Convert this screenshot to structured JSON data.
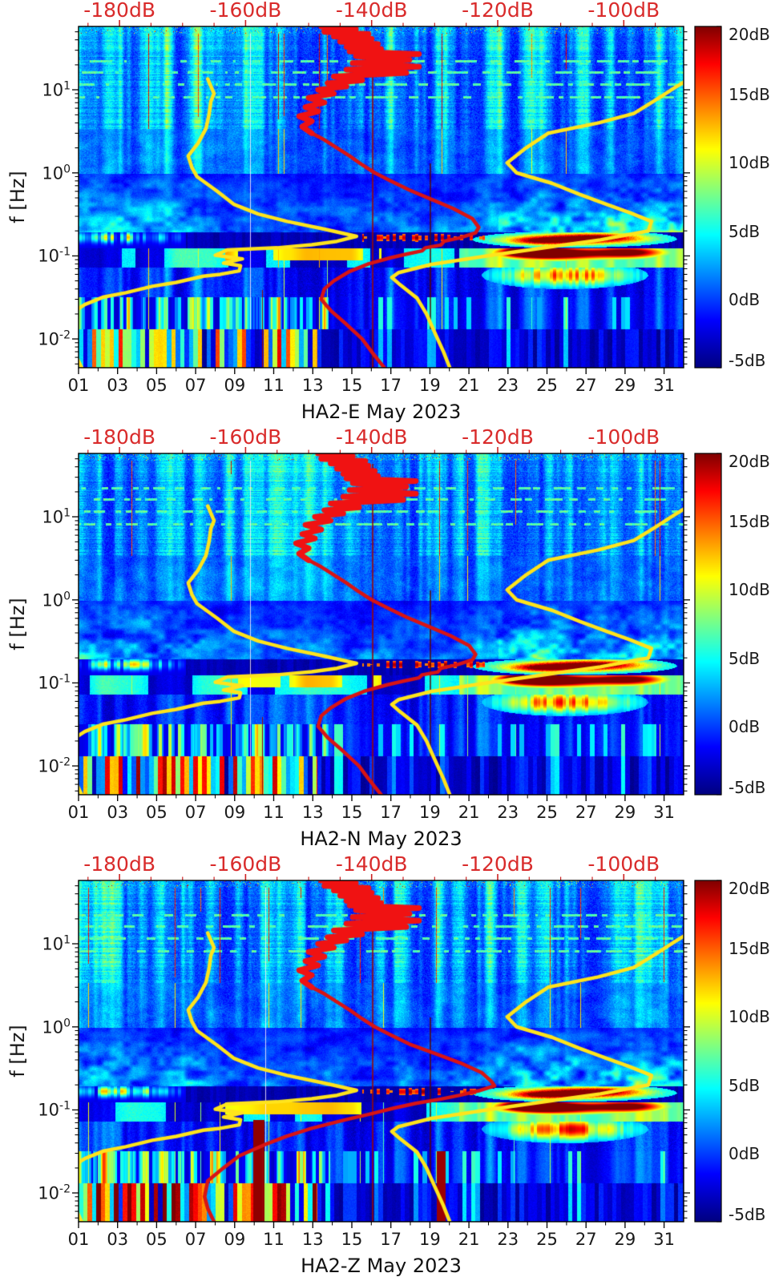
{
  "page": {
    "background": "#ffffff"
  },
  "chart_data": {
    "type": "heatmap",
    "figure_kind": "seismic PSD spectrograms with median PSD and noise-model curves",
    "month": "May 2023",
    "station": "HA2",
    "panels": [
      {
        "id": "HA2-E",
        "title": "HA2-E May 2023",
        "median_psd_curve_db_vs_hz": [
          [
            58,
            -148
          ],
          [
            54,
            -142.5
          ],
          [
            50,
            -147.5
          ],
          [
            47,
            -140.5
          ],
          [
            44,
            -146
          ],
          [
            41,
            -140
          ],
          [
            38,
            -145
          ],
          [
            35.5,
            -139
          ],
          [
            33,
            -144
          ],
          [
            31,
            -138.5
          ],
          [
            29,
            -143.5
          ],
          [
            27,
            -132.5
          ],
          [
            25.5,
            -142.5
          ],
          [
            23,
            -134
          ],
          [
            21,
            -143
          ],
          [
            19,
            -132.5
          ],
          [
            17.5,
            -144
          ],
          [
            16,
            -134.5
          ],
          [
            14.5,
            -146
          ],
          [
            13,
            -141.5
          ],
          [
            12,
            -147
          ],
          [
            11,
            -144
          ],
          [
            10,
            -148.5
          ],
          [
            9,
            -146
          ],
          [
            8,
            -150
          ],
          [
            7,
            -147.5
          ],
          [
            6.2,
            -150.5
          ],
          [
            5.5,
            -148.5
          ],
          [
            4.8,
            -151.5
          ],
          [
            4.2,
            -149.5
          ],
          [
            3.6,
            -151
          ],
          [
            3,
            -149.5
          ],
          [
            2.5,
            -147.5
          ],
          [
            2,
            -145.5
          ],
          [
            1.6,
            -143.5
          ],
          [
            1.25,
            -141.5
          ],
          [
            1,
            -139.5
          ],
          [
            0.8,
            -137
          ],
          [
            0.62,
            -134
          ],
          [
            0.48,
            -130.5
          ],
          [
            0.37,
            -127
          ],
          [
            0.28,
            -124
          ],
          [
            0.22,
            -123
          ],
          [
            0.19,
            -123.5
          ],
          [
            0.165,
            -126
          ],
          [
            0.15,
            -128.5
          ],
          [
            0.135,
            -129
          ],
          [
            0.125,
            -131.5
          ],
          [
            0.115,
            -132
          ],
          [
            0.105,
            -134.5
          ],
          [
            0.095,
            -137
          ],
          [
            0.08,
            -140.5
          ],
          [
            0.065,
            -143.5
          ],
          [
            0.05,
            -146
          ],
          [
            0.04,
            -147.5
          ],
          [
            0.03,
            -148
          ],
          [
            0.022,
            -146.5
          ],
          [
            0.015,
            -144
          ],
          [
            0.01,
            -141.5
          ],
          [
            0.007,
            -140
          ],
          [
            0.0045,
            -138
          ]
        ]
      },
      {
        "id": "HA2-N",
        "title": "HA2-N May 2023",
        "median_psd_curve_db_vs_hz": [
          [
            58,
            -148.5
          ],
          [
            54,
            -143
          ],
          [
            50,
            -148
          ],
          [
            47,
            -141
          ],
          [
            44,
            -146.5
          ],
          [
            41,
            -140.5
          ],
          [
            38,
            -145.5
          ],
          [
            35.5,
            -139.5
          ],
          [
            33,
            -144.5
          ],
          [
            31,
            -139
          ],
          [
            29,
            -144
          ],
          [
            27,
            -133
          ],
          [
            25.5,
            -143
          ],
          [
            23,
            -134.5
          ],
          [
            21,
            -143.5
          ],
          [
            19,
            -133
          ],
          [
            17.5,
            -144.5
          ],
          [
            16,
            -135
          ],
          [
            14.5,
            -146.5
          ],
          [
            13,
            -142
          ],
          [
            12,
            -147.5
          ],
          [
            11,
            -144.5
          ],
          [
            10,
            -149
          ],
          [
            9,
            -146.5
          ],
          [
            8,
            -150.5
          ],
          [
            7,
            -148
          ],
          [
            6.2,
            -151
          ],
          [
            5.5,
            -149
          ],
          [
            4.8,
            -152
          ],
          [
            4.2,
            -150
          ],
          [
            3.6,
            -151.5
          ],
          [
            3,
            -150
          ],
          [
            2.5,
            -148
          ],
          [
            2,
            -146
          ],
          [
            1.6,
            -144
          ],
          [
            1.25,
            -142
          ],
          [
            1,
            -140
          ],
          [
            0.8,
            -137.5
          ],
          [
            0.62,
            -134.5
          ],
          [
            0.48,
            -131
          ],
          [
            0.37,
            -127.5
          ],
          [
            0.28,
            -124.5
          ],
          [
            0.22,
            -123.5
          ],
          [
            0.19,
            -124
          ],
          [
            0.165,
            -126.5
          ],
          [
            0.15,
            -129
          ],
          [
            0.135,
            -129.5
          ],
          [
            0.125,
            -132
          ],
          [
            0.115,
            -132.5
          ],
          [
            0.105,
            -135
          ],
          [
            0.095,
            -137.5
          ],
          [
            0.08,
            -141
          ],
          [
            0.065,
            -144
          ],
          [
            0.05,
            -146.5
          ],
          [
            0.04,
            -148
          ],
          [
            0.03,
            -148.5
          ],
          [
            0.022,
            -147
          ],
          [
            0.015,
            -144.5
          ],
          [
            0.01,
            -142
          ],
          [
            0.007,
            -140.5
          ],
          [
            0.0045,
            -138.5
          ]
        ]
      },
      {
        "id": "HA2-Z",
        "title": "HA2-Z May 2023",
        "median_psd_curve_db_vs_hz": [
          [
            58,
            -148
          ],
          [
            54,
            -142.5
          ],
          [
            50,
            -147.5
          ],
          [
            47,
            -140.5
          ],
          [
            44,
            -146
          ],
          [
            41,
            -140
          ],
          [
            38,
            -145
          ],
          [
            35.5,
            -139
          ],
          [
            33,
            -144
          ],
          [
            31,
            -138.5
          ],
          [
            29,
            -143.5
          ],
          [
            27,
            -132.5
          ],
          [
            25.5,
            -142.5
          ],
          [
            23,
            -134
          ],
          [
            21,
            -143
          ],
          [
            19,
            -132.5
          ],
          [
            17.5,
            -144
          ],
          [
            16,
            -134.5
          ],
          [
            14.5,
            -146
          ],
          [
            13,
            -141.5
          ],
          [
            12,
            -147
          ],
          [
            11,
            -144
          ],
          [
            10,
            -148.5
          ],
          [
            9,
            -146
          ],
          [
            8,
            -150
          ],
          [
            7,
            -147.5
          ],
          [
            6.2,
            -150.5
          ],
          [
            5.5,
            -148.5
          ],
          [
            4.8,
            -151.5
          ],
          [
            4.2,
            -149.5
          ],
          [
            3.6,
            -151
          ],
          [
            3,
            -149.5
          ],
          [
            2.5,
            -147.5
          ],
          [
            2,
            -145.5
          ],
          [
            1.6,
            -143.5
          ],
          [
            1.25,
            -141.5
          ],
          [
            1,
            -139.5
          ],
          [
            0.8,
            -137
          ],
          [
            0.62,
            -134
          ],
          [
            0.48,
            -130
          ],
          [
            0.37,
            -126
          ],
          [
            0.28,
            -122.5
          ],
          [
            0.22,
            -121
          ],
          [
            0.195,
            -120.5
          ],
          [
            0.17,
            -123
          ],
          [
            0.15,
            -126
          ],
          [
            0.135,
            -129
          ],
          [
            0.12,
            -133
          ],
          [
            0.105,
            -136.5
          ],
          [
            0.09,
            -140
          ],
          [
            0.075,
            -144.5
          ],
          [
            0.06,
            -149.5
          ],
          [
            0.048,
            -153.5
          ],
          [
            0.038,
            -157
          ],
          [
            0.028,
            -161
          ],
          [
            0.02,
            -163.5
          ],
          [
            0.014,
            -166
          ],
          [
            0.009,
            -166.5
          ],
          [
            0.0065,
            -166
          ],
          [
            0.0045,
            -165
          ]
        ]
      }
    ],
    "curves": {
      "median_psd_color": "#d81414",
      "noise_model_color": "#ffe41c",
      "low_noise_model_db_vs_hz": [
        [
          13.5,
          -166
        ],
        [
          9,
          -165
        ],
        [
          7.3,
          -165.5
        ],
        [
          5,
          -165.8
        ],
        [
          3.4,
          -166.3
        ],
        [
          2.3,
          -167.5
        ],
        [
          1.6,
          -169.1
        ],
        [
          1.15,
          -168.5
        ],
        [
          0.9,
          -167.7
        ],
        [
          0.6,
          -164.5
        ],
        [
          0.42,
          -161.9
        ],
        [
          0.32,
          -158
        ],
        [
          0.26,
          -153.4
        ],
        [
          0.21,
          -147.5
        ],
        [
          0.172,
          -142.4
        ],
        [
          0.15,
          -145.5
        ],
        [
          0.136,
          -149.5
        ],
        [
          0.125,
          -155
        ],
        [
          0.118,
          -162.9
        ],
        [
          0.102,
          -164.8
        ],
        [
          0.092,
          -160.5
        ],
        [
          0.082,
          -163.5
        ],
        [
          0.076,
          -160.8
        ],
        [
          0.066,
          -161
        ],
        [
          0.06,
          -164
        ],
        [
          0.057,
          -166.7
        ],
        [
          0.048,
          -171
        ],
        [
          0.043,
          -174.8
        ],
        [
          0.036,
          -179
        ],
        [
          0.032,
          -182.5
        ],
        [
          0.026,
          -185.5
        ],
        [
          0.022,
          -187
        ],
        [
          0.015,
          -188
        ],
        [
          0.009,
          -187.5
        ],
        [
          0.006,
          -186.8
        ],
        [
          0.0045,
          -186
        ]
      ],
      "high_noise_model_db_vs_hz": [
        [
          13,
          -90
        ],
        [
          10.5,
          -92
        ],
        [
          7.5,
          -95
        ],
        [
          5.2,
          -98.4
        ],
        [
          4,
          -104
        ],
        [
          3,
          -112
        ],
        [
          2,
          -115.5
        ],
        [
          1.32,
          -118.5
        ],
        [
          1,
          -117
        ],
        [
          0.75,
          -111.4
        ],
        [
          0.55,
          -107
        ],
        [
          0.42,
          -102.8
        ],
        [
          0.33,
          -99
        ],
        [
          0.26,
          -95.6
        ],
        [
          0.2,
          -96.1
        ],
        [
          0.156,
          -103.7
        ],
        [
          0.123,
          -113.3
        ],
        [
          0.102,
          -120.9
        ],
        [
          0.079,
          -130.5
        ],
        [
          0.063,
          -135.7
        ],
        [
          0.055,
          -136.8
        ],
        [
          0.045,
          -135.5
        ],
        [
          0.031,
          -132.8
        ],
        [
          0.02,
          -131.3
        ],
        [
          0.012,
          -130
        ],
        [
          0.007,
          -128.6
        ],
        [
          0.0045,
          -127.6
        ]
      ]
    },
    "x_axis": {
      "range_days": [
        1,
        32
      ],
      "ticks": [
        {
          "label": "01",
          "day": 1
        },
        {
          "label": "03",
          "day": 3
        },
        {
          "label": "05",
          "day": 5
        },
        {
          "label": "07",
          "day": 7
        },
        {
          "label": "09",
          "day": 9
        },
        {
          "label": "11",
          "day": 11
        },
        {
          "label": "13",
          "day": 13
        },
        {
          "label": "15",
          "day": 15
        },
        {
          "label": "17",
          "day": 17
        },
        {
          "label": "19",
          "day": 19
        },
        {
          "label": "21",
          "day": 21
        },
        {
          "label": "23",
          "day": 23
        },
        {
          "label": "25",
          "day": 25
        },
        {
          "label": "27",
          "day": 27
        },
        {
          "label": "29",
          "day": 29
        },
        {
          "label": "31",
          "day": 31
        }
      ]
    },
    "y_axis": {
      "label": "f [Hz]",
      "scale": "log",
      "range_hz": [
        0.0045,
        58
      ],
      "ticks": [
        {
          "base": "10",
          "exp": "1",
          "value": 10
        },
        {
          "base": "10",
          "exp": "0",
          "value": 1
        },
        {
          "base": "10",
          "exp": "-1",
          "value": 0.1
        },
        {
          "base": "10",
          "exp": "-2",
          "value": 0.01
        }
      ]
    },
    "top_axis": {
      "color": "#d92b2b",
      "range_db": [
        -186.5,
        -90.5
      ],
      "ticks": [
        {
          "label": "-180dB",
          "db": -180
        },
        {
          "label": "-160dB",
          "db": -160
        },
        {
          "label": "-140dB",
          "db": -140
        },
        {
          "label": "-120dB",
          "db": -120
        },
        {
          "label": "-100dB",
          "db": -100
        }
      ]
    },
    "colorbar": {
      "colormap": "jet",
      "range_db": [
        -5,
        20
      ],
      "ticks": [
        {
          "label": "20dB",
          "value": 20
        },
        {
          "label": "15dB",
          "value": 15
        },
        {
          "label": "10dB",
          "value": 10
        },
        {
          "label": "5dB",
          "value": 5
        },
        {
          "label": "0dB",
          "value": 0
        },
        {
          "label": "-5dB",
          "value": -5
        }
      ]
    },
    "spectrogram": {
      "colormap": "jet",
      "value_range_db": [
        -5,
        20
      ],
      "features": [
        "blue background with vertical cyan daily noise stripes at 1-50 Hz",
        "dark quiet band 0.1-0.25 Hz with hot red secondary-microseism blobs days 22-31",
        "yellow/cyan banded strip 0.06-0.1 Hz",
        "saturated yellow/red/cyan long-period stripes days 1-13 below 0.03 Hz",
        "thin dark-red vertical artifact lines near days 10.4, 16.1 and 19.0"
      ]
    }
  }
}
